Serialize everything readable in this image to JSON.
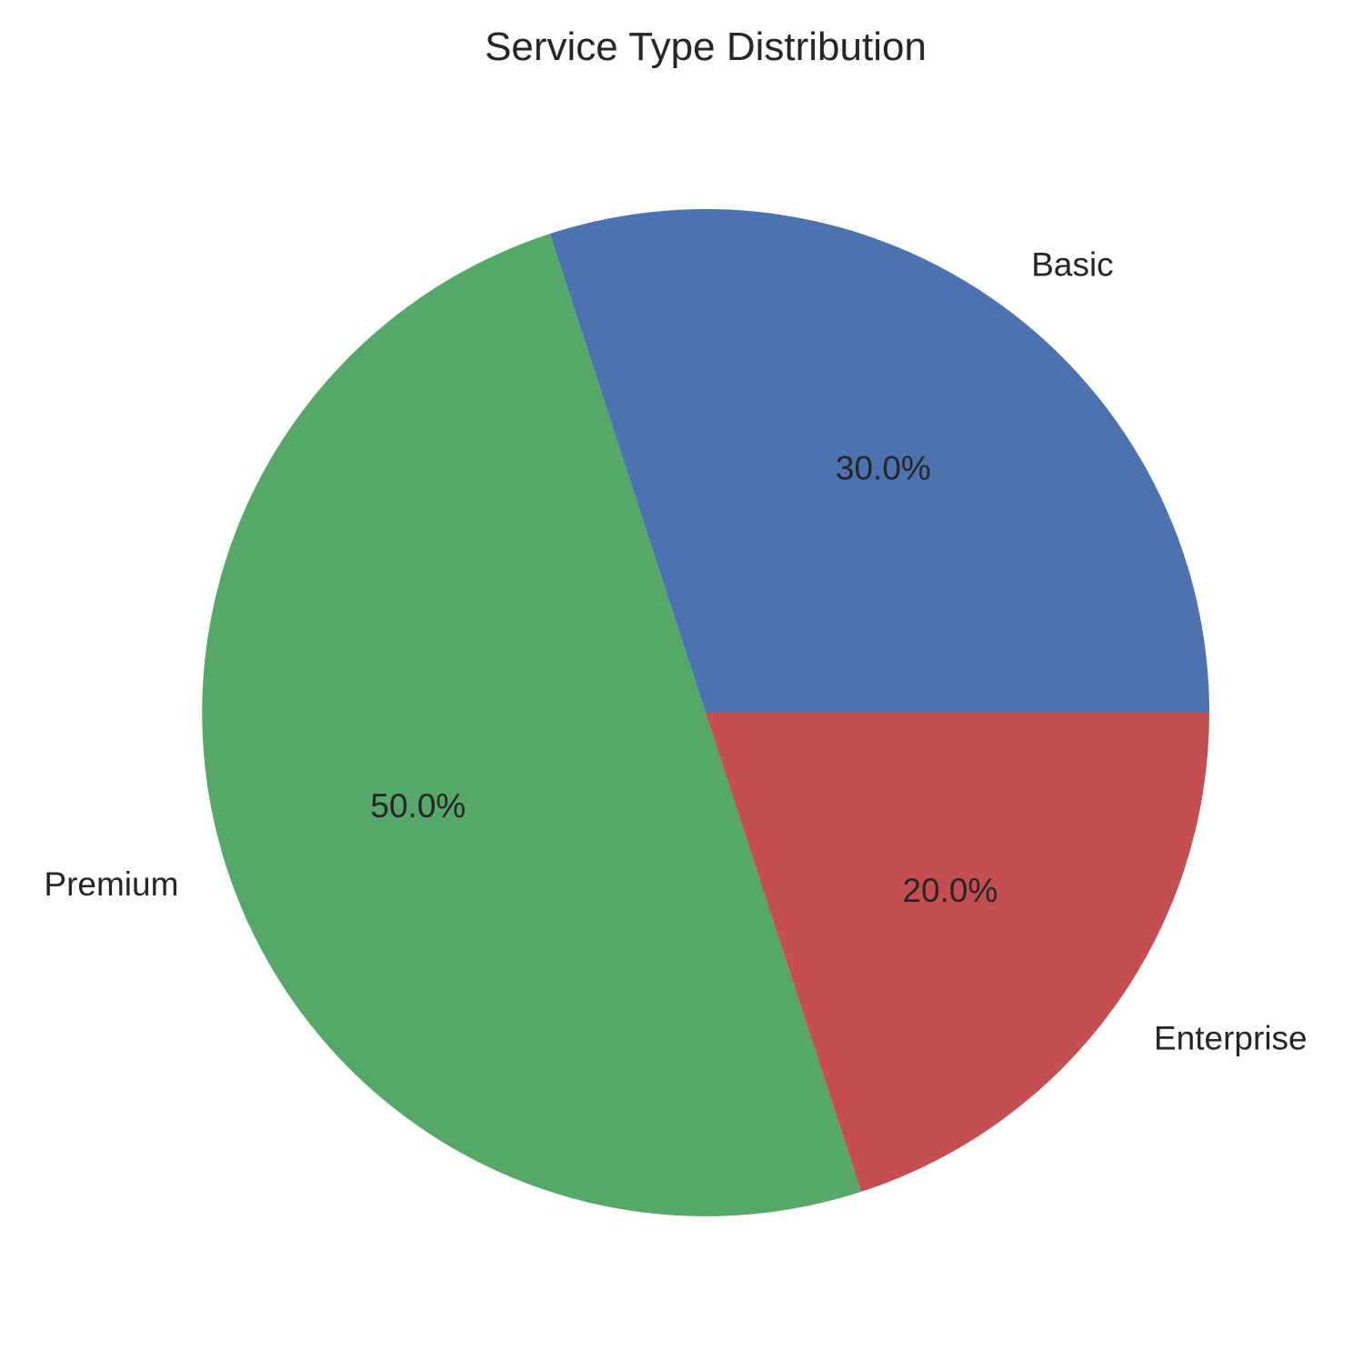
{
  "chart_data": {
    "type": "pie",
    "title": "Service Type Distribution",
    "categories": [
      "Basic",
      "Premium",
      "Enterprise"
    ],
    "values": [
      30.0,
      50.0,
      20.0
    ],
    "value_labels": [
      "30.0%",
      "50.0%",
      "20.0%"
    ],
    "colors": [
      "#4c72b0",
      "#55a868",
      "#c44e52"
    ],
    "start_angle_deg": 0,
    "direction": "counterclockwise",
    "legend": "none"
  }
}
